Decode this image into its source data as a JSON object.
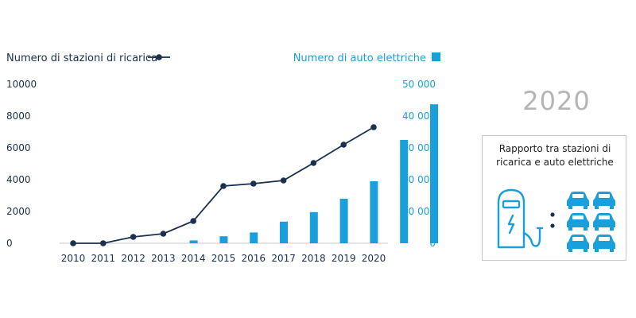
{
  "chart_data": {
    "type": "bar+line",
    "categories": [
      "2010",
      "2011",
      "2012",
      "2013",
      "2014",
      "2015",
      "2016",
      "2017",
      "2018",
      "2019",
      "2020"
    ],
    "series": [
      {
        "name": "Numero di auto elettriche",
        "type": "bar",
        "axis": "right",
        "color": "#19a0dc",
        "values": [
          0,
          0,
          900,
          2200,
          3400,
          6800,
          9800,
          14000,
          19500,
          32500,
          43700
        ]
      },
      {
        "name": "Numero di stazioni di ricarica",
        "type": "line",
        "axis": "left",
        "color": "#1b2f4f",
        "values": [
          0,
          0,
          400,
          600,
          1400,
          3600,
          3750,
          3950,
          5050,
          6200,
          7300
        ]
      }
    ],
    "y_left": {
      "ylim": [
        0,
        10000
      ],
      "ticks": [
        "0",
        "2000",
        "4000",
        "6000",
        "8000",
        "10000"
      ]
    },
    "y_right": {
      "ylim": [
        0,
        50000
      ],
      "ticks": [
        "0",
        "10 000",
        "20 000",
        "30 000",
        "40 000",
        "50 000"
      ]
    },
    "grid": false,
    "legend_placement": "top"
  },
  "side": {
    "year": "2020",
    "ratio_title_line1": "Rapporto tra stazioni di",
    "ratio_title_line2": "ricarica e auto elettriche",
    "charging_station_icon": "ev-charging-station-icon",
    "car_icon": "car-icon",
    "ratio_stations": 1,
    "ratio_cars": 6
  }
}
